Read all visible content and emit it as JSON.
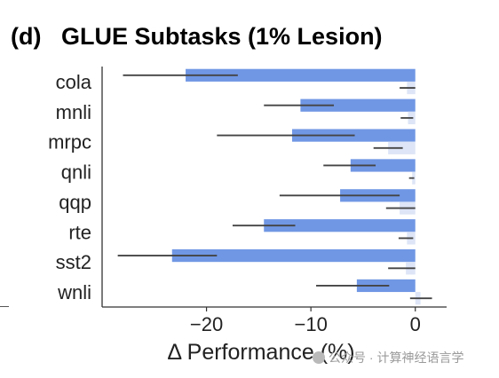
{
  "chart_data": {
    "type": "bar",
    "orientation": "horizontal",
    "title": "(d)   GLUE Subtasks (1% Lesion)",
    "xlabel": "Δ Performance (%)",
    "ylabel": "",
    "categories": [
      "cola",
      "mnli",
      "mrpc",
      "qnli",
      "qqp",
      "rte",
      "sst2",
      "wnli"
    ],
    "xlim": [
      -30,
      3
    ],
    "xticks": [
      -20,
      -10,
      0
    ],
    "xtick_labels": [
      "−20",
      "−10",
      "0"
    ],
    "grid": false,
    "series": [
      {
        "color": "#7097e4",
        "values": [
          -22.0,
          -11.0,
          -11.8,
          -6.2,
          -7.2,
          -14.5,
          -23.3,
          -5.6
        ],
        "err_low": [
          -28.0,
          -14.5,
          -19.0,
          -8.8,
          -13.0,
          -17.5,
          -28.5,
          -9.5
        ],
        "err_high": [
          -17.0,
          -7.8,
          -5.8,
          -3.8,
          -1.5,
          -11.5,
          -19.0,
          -2.5
        ]
      },
      {
        "color": "#dde5f6",
        "values": [
          -0.8,
          -0.7,
          -2.6,
          -0.3,
          -1.5,
          -0.8,
          -0.9,
          0.5
        ],
        "err_low": [
          -1.5,
          -1.4,
          -4.0,
          -0.6,
          -2.8,
          -1.6,
          -2.6,
          -0.5
        ],
        "err_high": [
          0.0,
          -0.2,
          -1.2,
          -0.1,
          0.0,
          -0.2,
          0.0,
          1.6
        ]
      }
    ]
  },
  "watermark": {
    "text": "公众号 · 计算神经语言学"
  }
}
